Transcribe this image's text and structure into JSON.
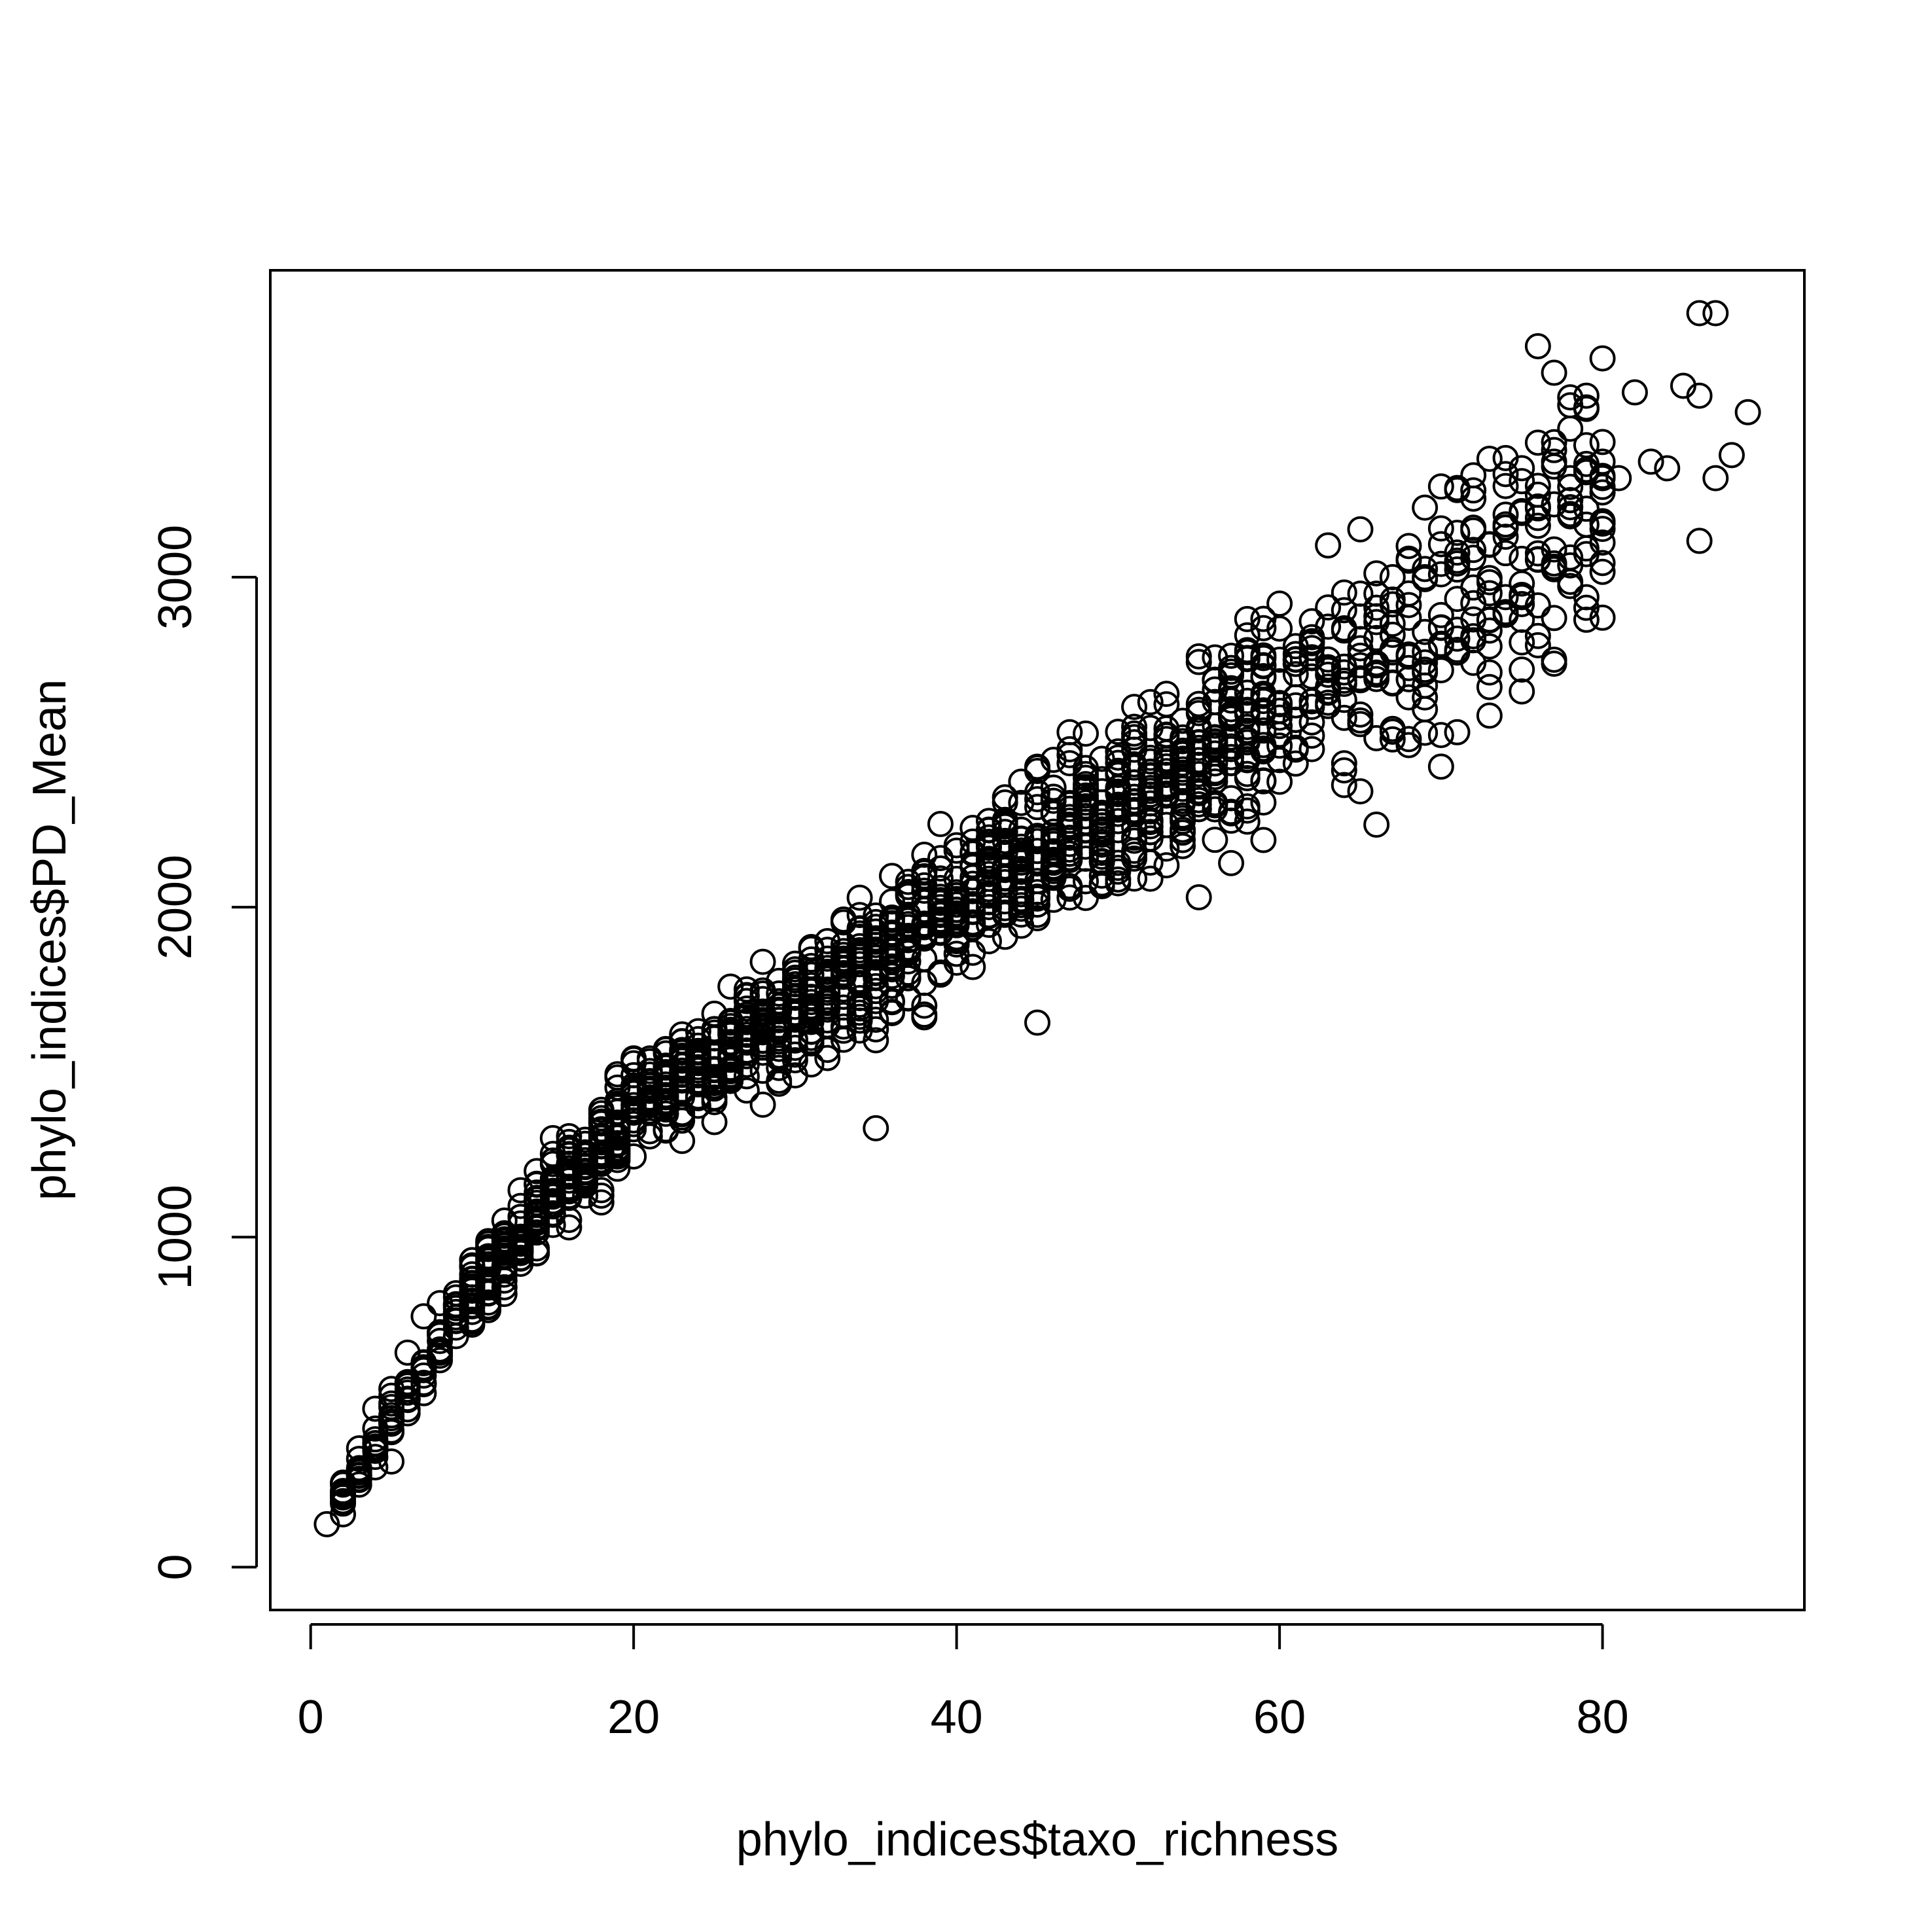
{
  "chart_data": {
    "type": "scatter",
    "title": "",
    "xlabel": "phylo_indices$taxo_richness",
    "ylabel": "phylo_indices$PD_Mean",
    "xlim": [
      -2.5,
      92.5
    ],
    "ylim": [
      -130,
      3930
    ],
    "xticks": [
      0,
      20,
      40,
      60,
      80
    ],
    "yticks": [
      0,
      1000,
      2000,
      3000
    ],
    "xtick_labels": [
      "0",
      "20",
      "40",
      "60",
      "80"
    ],
    "ytick_labels": [
      "0",
      "1000",
      "2000",
      "3000"
    ],
    "grid": false,
    "legend": "none",
    "marker": "open-circle",
    "marker_color": "#000000",
    "trend": {
      "note_shape_anchors": [
        [
          1,
          130
        ],
        [
          10,
          830
        ],
        [
          20,
          1400
        ],
        [
          30,
          1680
        ],
        [
          40,
          2000
        ],
        [
          50,
          2300
        ],
        [
          60,
          2600
        ],
        [
          70,
          2880
        ],
        [
          80,
          3250
        ],
        [
          89,
          3500
        ]
      ]
    },
    "points": {
      "x": [
        1,
        2,
        2,
        2,
        3,
        3,
        3,
        4,
        4,
        4,
        5,
        5,
        5,
        6,
        6,
        7,
        7,
        8,
        8,
        9,
        9,
        10,
        10,
        11,
        11,
        12,
        12,
        13,
        14,
        14,
        15,
        15,
        16,
        17,
        18,
        19,
        20,
        21,
        22,
        23,
        24,
        25,
        26,
        27,
        28,
        29,
        30,
        31,
        32,
        33,
        34,
        35,
        35,
        36,
        37,
        38,
        39,
        40,
        41,
        42,
        43,
        44,
        45,
        45,
        46,
        47,
        48,
        50,
        52,
        54,
        55,
        55,
        56,
        57,
        58,
        59,
        60,
        61,
        62,
        63,
        64,
        65,
        66,
        66,
        67,
        68,
        69,
        70,
        71,
        72,
        73,
        74,
        75,
        76,
        76,
        77,
        77,
        78,
        78,
        79,
        79,
        80,
        80,
        81,
        82,
        83,
        84,
        85,
        86,
        86,
        86,
        87,
        87,
        88,
        89
      ],
      "y": [
        130,
        160,
        250,
        200,
        300,
        360,
        250,
        420,
        480,
        360,
        440,
        540,
        320,
        550,
        650,
        600,
        760,
        650,
        800,
        700,
        830,
        750,
        930,
        850,
        980,
        900,
        1050,
        980,
        1050,
        1200,
        1100,
        1300,
        1150,
        1250,
        1350,
        1380,
        1400,
        1450,
        1500,
        1550,
        1600,
        1550,
        1650,
        1600,
        1650,
        1700,
        1680,
        1700,
        1750,
        1800,
        1780,
        1800,
        1330,
        1850,
        1900,
        1950,
        2000,
        1950,
        2050,
        2100,
        2050,
        2150,
        2200,
        1650,
        2200,
        2250,
        2300,
        2350,
        2400,
        2450,
        2500,
        2030,
        2550,
        2600,
        2650,
        2700,
        2750,
        2750,
        2800,
        2850,
        2900,
        2950,
        2950,
        2250,
        3000,
        3050,
        3000,
        3100,
        3050,
        3150,
        3100,
        3150,
        3200,
        3250,
        3700,
        3350,
        2750,
        3300,
        3450,
        3400,
        3550,
        3350,
        3300,
        3300,
        3560,
        3350,
        3330,
        3580,
        3800,
        3550,
        3110,
        3800,
        3300,
        3370,
        3500
      ]
    }
  }
}
